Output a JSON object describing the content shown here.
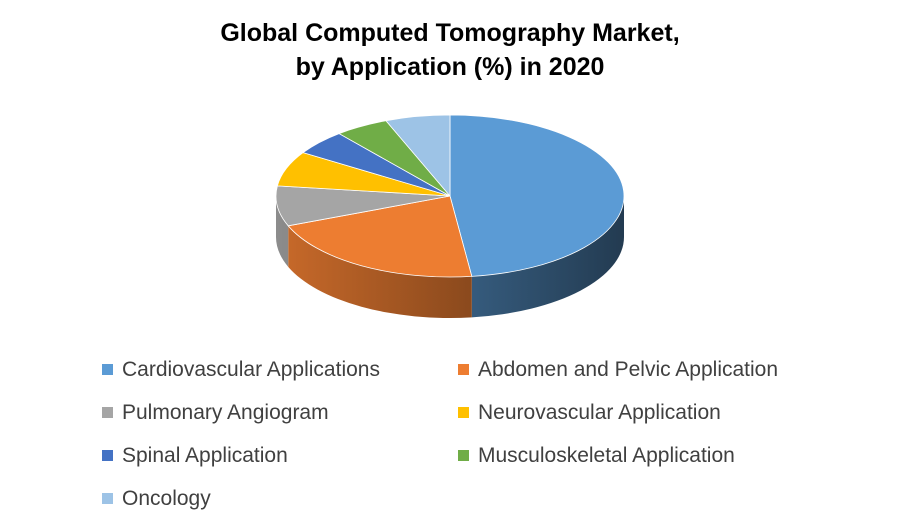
{
  "chart_data": {
    "type": "pie",
    "title_lines": [
      "Global Computed Tomography Market,",
      "by Application (%) in 2020"
    ],
    "series": [
      {
        "values": [
          {
            "label": "Cardiovascular Applications",
            "value": 48,
            "color": "#5B9BD5"
          },
          {
            "label": "Abdomen and Pelvic Application",
            "value": 21,
            "color": "#ED7D31"
          },
          {
            "label": "Pulmonary Angiogram",
            "value": 8,
            "color": "#A5A5A5"
          },
          {
            "label": "Neurovascular Application",
            "value": 7,
            "color": "#FFC000"
          },
          {
            "label": "Spinal Application",
            "value": 5,
            "color": "#4472C4"
          },
          {
            "label": "Musculoskeletal Application",
            "value": 5,
            "color": "#70AD47"
          },
          {
            "label": "Oncology",
            "value": 6,
            "color": "#9DC3E6"
          }
        ]
      }
    ],
    "style": "3d",
    "legend_position": "bottom"
  }
}
